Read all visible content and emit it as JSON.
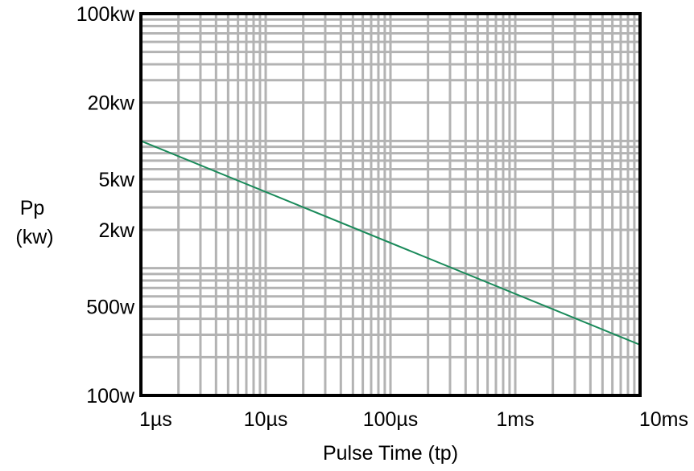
{
  "chart_data": {
    "type": "line",
    "title": "",
    "xlabel": "Pulse Time (tp)",
    "ylabel": [
      "Pp",
      "(kw)"
    ],
    "x_scale": "log",
    "y_scale": "log",
    "xlim_seconds": [
      1e-06,
      0.01
    ],
    "ylim_watts": [
      100,
      100000
    ],
    "x_ticks": [
      {
        "value": 1e-06,
        "label": "1µs"
      },
      {
        "value": 1e-05,
        "label": "10µs"
      },
      {
        "value": 0.0001,
        "label": "100µs"
      },
      {
        "value": 0.001,
        "label": "1ms"
      },
      {
        "value": 0.01,
        "label": "10ms"
      }
    ],
    "y_ticks": [
      {
        "value": 100000,
        "label": "100kw"
      },
      {
        "value": 20000,
        "label": "20kw"
      },
      {
        "value": 5000,
        "label": "5kw"
      },
      {
        "value": 2000,
        "label": "2kw"
      },
      {
        "value": 500,
        "label": "500w"
      },
      {
        "value": 100,
        "label": "100w"
      }
    ],
    "grid": true,
    "grid_color": "#b3b3b3",
    "line_color": "#1a8a5a",
    "series": [
      {
        "values_x_seconds": [
          1e-06,
          0.01
        ],
        "values_y_watts": [
          10000,
          250
        ]
      }
    ]
  }
}
